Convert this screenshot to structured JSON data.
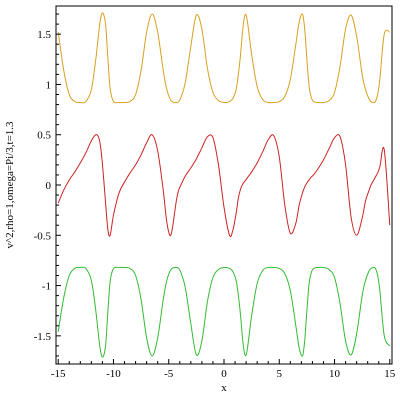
{
  "chart_data": {
    "type": "line",
    "title": "",
    "xlabel": "x",
    "ylabel": "v^2,rho=1,omega=Pi/3,t=1.3",
    "xlim": [
      -15.2,
      15.2
    ],
    "ylim": [
      -1.78,
      1.78
    ],
    "x_ticks": [
      {
        "value": -15,
        "label": "-15"
      },
      {
        "value": -10,
        "label": "-10"
      },
      {
        "value": -5,
        "label": "-5"
      },
      {
        "value": 0,
        "label": "0"
      },
      {
        "value": 5,
        "label": "5"
      },
      {
        "value": 10,
        "label": "10"
      },
      {
        "value": 15,
        "label": "15"
      }
    ],
    "y_ticks": [
      {
        "value": 1.5,
        "label": "1.5"
      },
      {
        "value": 1,
        "label": "1"
      },
      {
        "value": 0.5,
        "label": "0.5"
      },
      {
        "value": 0,
        "label": "0"
      },
      {
        "value": -0.5,
        "label": "-0.5"
      },
      {
        "value": -1,
        "label": "-1"
      },
      {
        "value": -1.5,
        "label": "-1.5"
      }
    ],
    "grid": false,
    "legend": "none",
    "x": [
      -15,
      -14.5,
      -14,
      -13.5,
      -13,
      -12.5,
      -12,
      -11.6,
      -11.3,
      -11.1,
      -10.9,
      -10.7,
      -10.5,
      -10.3,
      -10,
      -9.5,
      -9,
      -8.5,
      -8,
      -7.5,
      -7,
      -6.5,
      -6,
      -5.5,
      -5.2,
      -4.9,
      -4.7,
      -4.5,
      -4.3,
      -4.1,
      -3.9,
      -3.5,
      -3,
      -2.5,
      -2,
      -1.5,
      -1,
      -0.5,
      0,
      0.5,
      0.8,
      1.1,
      1.3,
      1.5,
      1.7,
      1.9,
      2.1,
      2.5,
      3,
      3.5,
      4,
      4.5,
      5,
      5.5,
      6,
      6.5,
      6.8,
      7.1,
      7.3,
      7.5,
      7.7,
      7.9,
      8.1,
      8.5,
      9,
      9.5,
      10,
      10.5,
      11,
      11.5,
      12,
      12.5,
      12.8,
      13.1,
      13.3,
      13.5,
      13.7,
      13.9,
      14.1,
      14.5,
      15
    ],
    "series": [
      {
        "color": "#d9a020",
        "values": [
          1.52,
          1.14,
          0.9,
          0.83,
          0.82,
          0.83,
          0.95,
          1.25,
          1.55,
          1.69,
          1.7,
          1.58,
          1.25,
          0.96,
          0.83,
          0.82,
          0.82,
          0.83,
          0.9,
          1.14,
          1.52,
          1.7,
          1.52,
          1.14,
          0.96,
          0.86,
          0.83,
          0.82,
          0.82,
          0.83,
          0.87,
          1.02,
          1.38,
          1.69,
          1.55,
          1.16,
          0.92,
          0.84,
          0.82,
          0.83,
          0.86,
          0.95,
          1.1,
          1.3,
          1.55,
          1.69,
          1.64,
          1.3,
          0.98,
          0.85,
          0.82,
          0.82,
          0.83,
          0.88,
          1.05,
          1.4,
          1.62,
          1.7,
          1.55,
          1.25,
          0.98,
          0.87,
          0.83,
          0.82,
          0.82,
          0.84,
          0.92,
          1.18,
          1.55,
          1.69,
          1.48,
          1.1,
          0.95,
          0.86,
          0.83,
          0.82,
          0.83,
          0.9,
          1.05,
          1.5,
          1.52
        ]
      },
      {
        "color": "#cc2222",
        "values": [
          -0.18,
          -0.05,
          0.05,
          0.13,
          0.22,
          0.32,
          0.44,
          0.5,
          0.46,
          0.32,
          0.08,
          -0.2,
          -0.45,
          -0.5,
          -0.3,
          -0.08,
          0.03,
          0.12,
          0.2,
          0.3,
          0.42,
          0.5,
          0.34,
          -0.05,
          -0.35,
          -0.5,
          -0.45,
          -0.3,
          -0.15,
          -0.05,
          0.0,
          0.09,
          0.17,
          0.26,
          0.37,
          0.48,
          0.47,
          0.2,
          -0.22,
          -0.5,
          -0.45,
          -0.28,
          -0.13,
          -0.04,
          0.01,
          0.04,
          0.07,
          0.13,
          0.22,
          0.33,
          0.45,
          0.49,
          0.28,
          -0.2,
          -0.48,
          -0.38,
          -0.2,
          -0.08,
          -0.02,
          0.02,
          0.05,
          0.08,
          0.1,
          0.16,
          0.25,
          0.36,
          0.47,
          0.48,
          0.2,
          -0.32,
          -0.5,
          -0.33,
          -0.16,
          -0.06,
          0.0,
          0.04,
          0.08,
          0.12,
          0.18,
          0.35,
          -0.4
        ]
      },
      {
        "color": "#33bb33",
        "values": [
          -1.46,
          -1.12,
          -0.9,
          -0.83,
          -0.82,
          -0.83,
          -0.95,
          -1.25,
          -1.55,
          -1.69,
          -1.7,
          -1.58,
          -1.25,
          -0.96,
          -0.83,
          -0.82,
          -0.82,
          -0.83,
          -0.9,
          -1.14,
          -1.52,
          -1.7,
          -1.52,
          -1.14,
          -0.96,
          -0.86,
          -0.83,
          -0.82,
          -0.82,
          -0.83,
          -0.87,
          -1.02,
          -1.38,
          -1.69,
          -1.55,
          -1.16,
          -0.92,
          -0.84,
          -0.82,
          -0.83,
          -0.86,
          -0.95,
          -1.1,
          -1.3,
          -1.55,
          -1.69,
          -1.64,
          -1.3,
          -0.98,
          -0.85,
          -0.82,
          -0.82,
          -0.83,
          -0.88,
          -1.05,
          -1.4,
          -1.62,
          -1.7,
          -1.55,
          -1.25,
          -0.98,
          -0.87,
          -0.83,
          -0.82,
          -0.82,
          -0.84,
          -0.92,
          -1.18,
          -1.55,
          -1.69,
          -1.48,
          -1.1,
          -0.95,
          -0.86,
          -0.83,
          -0.82,
          -0.83,
          -0.9,
          -1.05,
          -1.5,
          -1.6
        ]
      }
    ]
  }
}
